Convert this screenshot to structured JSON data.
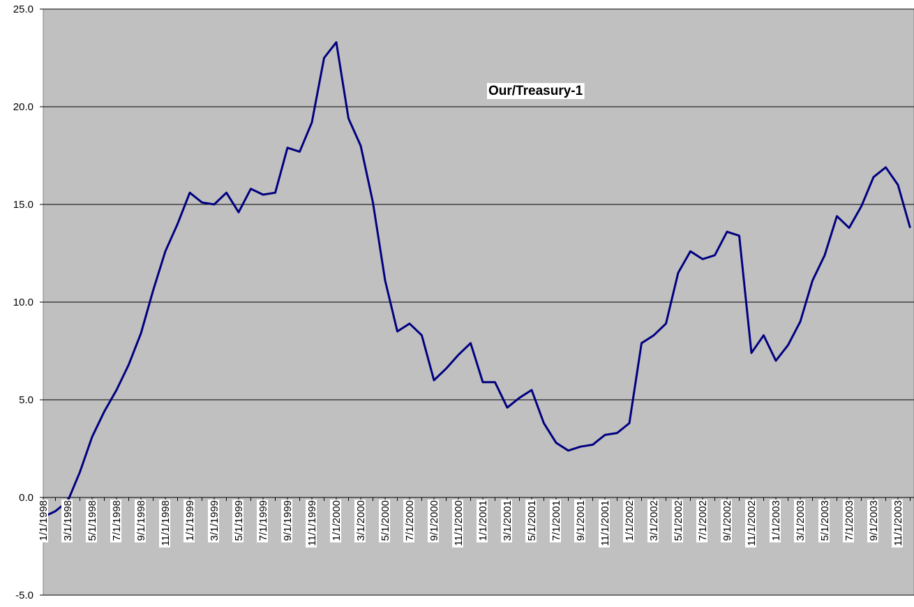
{
  "chart_data": {
    "type": "line",
    "annotation": "Our/Treasury-1",
    "categories": [
      "1/1/1998",
      null,
      "3/1/1998",
      null,
      "5/1/1998",
      null,
      "7/1/1998",
      null,
      "9/1/1998",
      null,
      "11/1/1998",
      null,
      "1/1/1999",
      null,
      "3/1/1999",
      null,
      "5/1/1999",
      null,
      "7/1/1999",
      null,
      "9/1/1999",
      null,
      "11/1/1999",
      null,
      "1/1/2000",
      null,
      "3/1/2000",
      null,
      "5/1/2000",
      null,
      "7/1/2000",
      null,
      "9/1/2000",
      null,
      "11/1/2000",
      null,
      "1/1/2001",
      null,
      "3/1/2001",
      null,
      "5/1/2001",
      null,
      "7/1/2001",
      null,
      "9/1/2001",
      null,
      "11/1/2001",
      null,
      "1/1/2002",
      null,
      "3/1/2002",
      null,
      "5/1/2002",
      null,
      "7/1/2002",
      null,
      "9/1/2002",
      null,
      "11/1/2002",
      null,
      "1/1/2003",
      null,
      "3/1/2003",
      null,
      "5/1/2003",
      null,
      "7/1/2003",
      null,
      "9/1/2003",
      null,
      "11/1/2003",
      null
    ],
    "series": [
      {
        "name": "Our/Treasury-1",
        "color": "#000080",
        "values": [
          -1.0,
          -0.7,
          -0.2,
          1.3,
          3.1,
          4.4,
          5.5,
          6.8,
          8.4,
          10.6,
          12.6,
          14.0,
          15.6,
          15.1,
          15.0,
          15.6,
          14.6,
          15.8,
          15.5,
          15.6,
          17.9,
          17.7,
          19.2,
          22.5,
          23.3,
          19.4,
          18.0,
          15.1,
          11.1,
          8.5,
          8.9,
          8.3,
          6.0,
          6.6,
          7.3,
          7.9,
          5.9,
          5.9,
          4.6,
          5.1,
          5.5,
          3.8,
          2.8,
          2.4,
          2.6,
          2.7,
          3.2,
          3.3,
          3.8,
          7.9,
          8.3,
          8.9,
          11.5,
          12.6,
          12.2,
          12.4,
          13.6,
          13.4,
          7.4,
          8.3,
          7.0,
          7.8,
          9.0,
          11.1,
          12.4,
          14.4,
          13.8,
          14.9,
          16.4,
          16.9,
          16.0,
          13.8
        ]
      }
    ],
    "ylim": [
      -5,
      25
    ],
    "yticks": [
      {
        "value": -5,
        "label": "-5.0"
      },
      {
        "value": 0,
        "label": "0.0"
      },
      {
        "value": 5,
        "label": "5.0"
      },
      {
        "value": 10,
        "label": "10.0"
      },
      {
        "value": 15,
        "label": "15.0"
      },
      {
        "value": 20,
        "label": "20.0"
      },
      {
        "value": 25,
        "label": "25.0"
      }
    ],
    "grid": true,
    "plot_background": "#c0c0c0"
  }
}
